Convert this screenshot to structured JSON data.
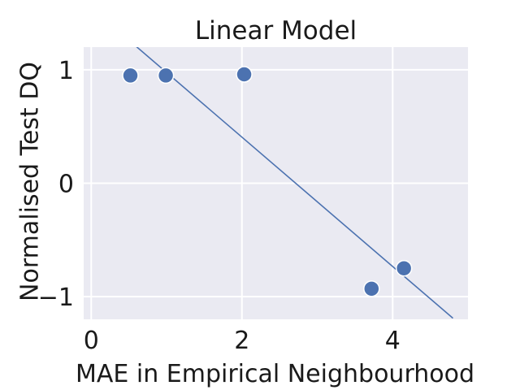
{
  "chart_data": {
    "type": "scatter",
    "title": "Linear Model",
    "xlabel": "MAE in Empirical Neighbourhood",
    "ylabel": "Normalised Test DQ",
    "xlim": [
      -0.1,
      5.0
    ],
    "ylim": [
      -1.2,
      1.2
    ],
    "x_ticks": [
      0,
      2,
      4
    ],
    "x_tick_labels": [
      "0",
      "2",
      "4"
    ],
    "y_ticks": [
      -1,
      0,
      1
    ],
    "y_tick_labels": [
      "−1",
      "0",
      "1"
    ],
    "grid": true,
    "series": [
      {
        "kind": "points",
        "x": [
          0.52,
          0.99,
          2.03,
          3.72,
          4.15
        ],
        "y": [
          0.95,
          0.95,
          0.96,
          -0.93,
          -0.75
        ]
      },
      {
        "kind": "fit-line",
        "x": [
          0.59,
          4.8
        ],
        "y": [
          1.21,
          -1.19
        ]
      }
    ],
    "colors": {
      "background": "#eaeaf2",
      "grid": "#ffffff",
      "series": "#4c72b0",
      "marker_edge": "#ffffff"
    }
  }
}
